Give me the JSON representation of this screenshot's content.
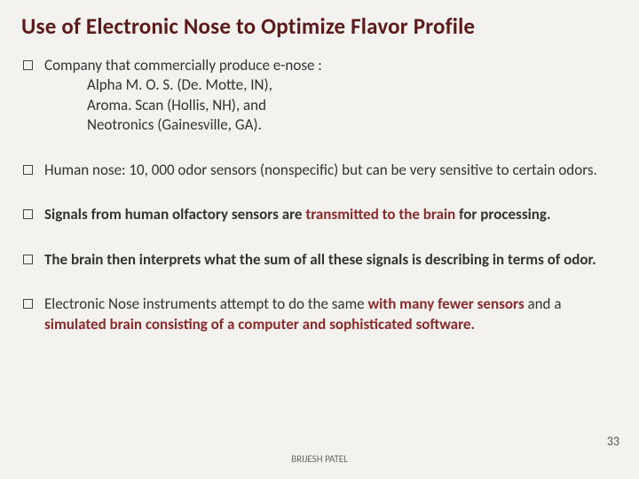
{
  "title": "Use of Electronic Nose to Optimize Flavor Profile",
  "bullets": [
    {
      "lead": "Company that commercially produce e-nose :",
      "sub": [
        "Alpha M. O. S. (De. Motte, IN),",
        "Aroma. Scan (Hollis, NH), and",
        "Neotronics (Gainesville, GA)."
      ]
    },
    {
      "html": "Human nose: 10, 000 odor sensors (nonspecific) but can be very sensitive to certain odors."
    },
    {
      "html": "<span class='b'>Signals from human olfactory sensors are </span><span class='r'>transmitted to the brain</span><span class='b'> for processing.</span>"
    },
    {
      "html": "<span class='b'>The brain then interprets what the sum of all these signals is describing in terms of odor.</span>"
    },
    {
      "html": "Electronic Nose instruments attempt to do the same <span class='r'>with many fewer sensors</span> and a <span class='r'>simulated brain consisting of a computer and sophisticated softwa</span><span class='r'>re.</span>"
    }
  ],
  "footer_author": "BRIJESH PATEL",
  "page_number": "33",
  "colors": {
    "title": "#5d1a1a",
    "emphasis": "#8a2a2a",
    "background": "#f4f2ee"
  }
}
